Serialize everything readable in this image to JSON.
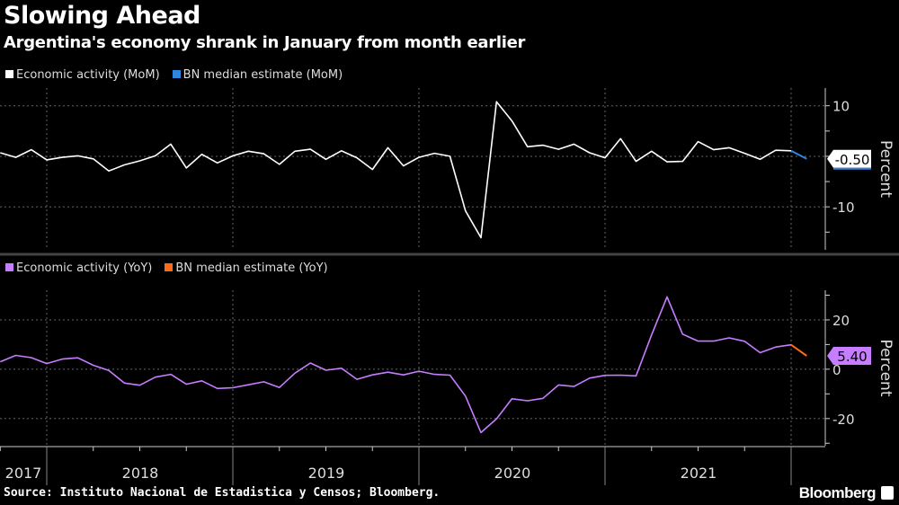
{
  "header": {
    "title": "Slowing Ahead",
    "subtitle": "Argentina's economy shrank in January from month earlier"
  },
  "footer": {
    "source": "Source: Instituto Nacional de Estadistica y Censos; Bloomberg.",
    "brand": "Bloomberg"
  },
  "chart_data": [
    {
      "type": "line",
      "legend_placement": "top-left",
      "grid": true,
      "ylabel": "Percent",
      "ylim": [
        -18.5,
        13.5
      ],
      "yticks": [
        10,
        -10
      ],
      "x_tick_labels": [
        "2017",
        "2018",
        "2019",
        "2020",
        "2021"
      ],
      "last_value_label": "-0.50",
      "series": [
        {
          "name": "Economic activity (MoM)",
          "color": "#ffffff",
          "start": "2017-09",
          "values": [
            0.7,
            -0.2,
            1.3,
            -0.7,
            -0.2,
            0.1,
            -0.5,
            -2.9,
            -1.7,
            -0.9,
            0.1,
            2.4,
            -2.3,
            0.4,
            -1.3,
            0.1,
            1.0,
            0.5,
            -1.6,
            1.0,
            1.4,
            -0.6,
            1.1,
            -0.3,
            -2.6,
            1.7,
            -1.9,
            -0.2,
            0.6,
            0.0,
            -10.8,
            -16.1,
            10.8,
            7.0,
            1.9,
            2.2,
            1.4,
            2.4,
            0.7,
            -0.3,
            3.5,
            -1.0,
            1.0,
            -1.1,
            -1.0,
            2.9,
            1.3,
            1.7,
            0.6,
            -0.6,
            1.2,
            1.1
          ]
        },
        {
          "name": "BN median estimate (MoM)",
          "color": "#2e86de",
          "start": "2021-12",
          "values": [
            1.1,
            -0.5
          ]
        }
      ]
    },
    {
      "type": "line",
      "legend_placement": "top-left",
      "grid": true,
      "ylabel": "Percent",
      "ylim": [
        -31,
        32
      ],
      "yticks": [
        20,
        0,
        -20
      ],
      "x_tick_labels": [
        "2017",
        "2018",
        "2019",
        "2020",
        "2021"
      ],
      "last_value_label": "5.40",
      "series": [
        {
          "name": "Economic activity (YoY)",
          "color": "#c77dff",
          "start": "2017-09",
          "values": [
            3.0,
            5.6,
            4.7,
            2.3,
            4.1,
            4.6,
            1.6,
            -0.5,
            -5.6,
            -6.5,
            -3.2,
            -2.1,
            -6.1,
            -4.7,
            -7.8,
            -7.5,
            -6.3,
            -5.1,
            -7.4,
            -1.6,
            2.5,
            -0.4,
            0.4,
            -4.1,
            -2.3,
            -1.2,
            -2.3,
            -0.8,
            -2.1,
            -2.4,
            -10.9,
            -25.7,
            -20.1,
            -12.0,
            -12.8,
            -11.8,
            -6.4,
            -7.0,
            -3.6,
            -2.5,
            -2.4,
            -2.7,
            13.9,
            29.3,
            14.2,
            11.4,
            11.4,
            12.7,
            11.3,
            6.7,
            9.0,
            9.9
          ]
        },
        {
          "name": "BN median estimate (YoY)",
          "color": "#ff6a1a",
          "start": "2021-12",
          "values": [
            9.9,
            5.4
          ]
        }
      ]
    }
  ]
}
